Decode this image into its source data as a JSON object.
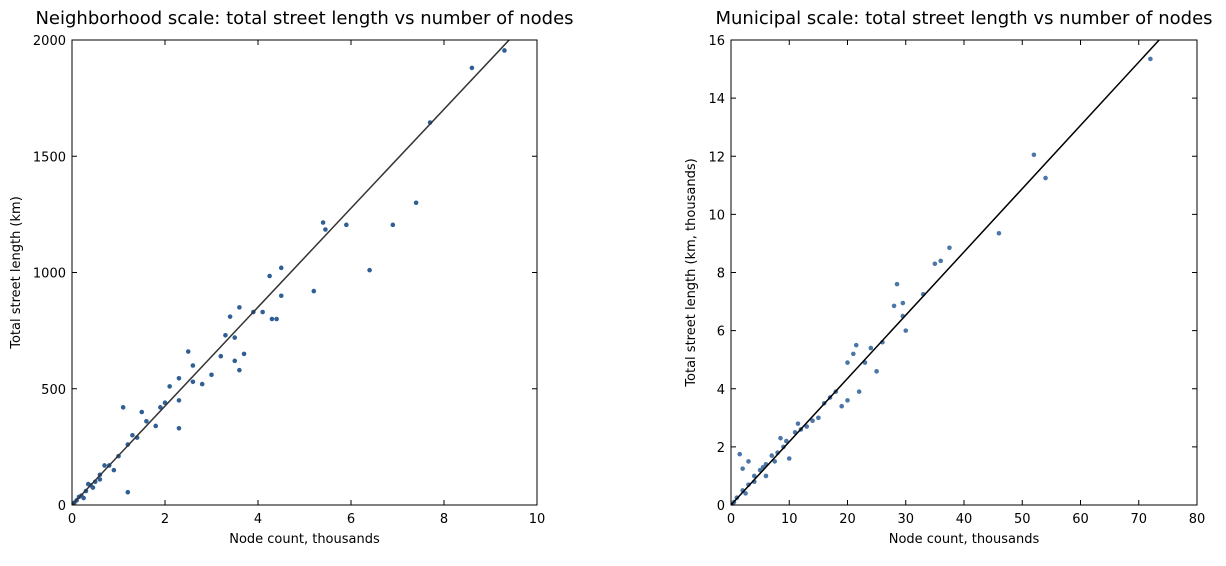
{
  "chart_data": [
    {
      "type": "scatter",
      "title": "Neighborhood scale: total street length vs number of nodes",
      "xlabel": "Node count, thousands",
      "ylabel": "Total street length (km)",
      "xlim": [
        0,
        10
      ],
      "ylim": [
        0,
        2000
      ],
      "xticks": [
        0,
        2,
        4,
        6,
        8,
        10
      ],
      "yticks": [
        0,
        500,
        1000,
        1500,
        2000
      ],
      "color": "#2f5f94",
      "x": [
        9.3,
        8.6,
        7.7,
        7.4,
        6.9,
        6.4,
        5.9,
        5.4,
        5.45,
        5.2,
        4.5,
        4.25,
        4.3,
        4.4,
        4.1,
        4.5,
        3.9,
        3.6,
        3.4,
        3.5,
        3.3,
        3.5,
        3.6,
        3.0,
        2.6,
        2.5,
        2.3,
        2.1,
        2.3,
        1.9,
        2.3,
        1.5,
        1.1,
        1.6,
        1.2,
        1.0,
        0.8,
        0.6,
        0.5,
        0.4,
        0.3,
        0.2,
        0.1,
        0.05,
        1.2,
        0.7,
        0.9,
        1.3,
        1.8,
        2.8,
        3.2,
        0.35,
        0.6,
        0.25,
        1.4,
        2.0,
        2.6,
        3.7,
        0.15,
        0.45
      ],
      "y": [
        1955,
        1880,
        1645,
        1300,
        1205,
        1010,
        1205,
        1215,
        1185,
        920,
        1020,
        985,
        800,
        800,
        830,
        900,
        830,
        850,
        810,
        720,
        730,
        620,
        580,
        560,
        600,
        660,
        545,
        510,
        450,
        420,
        330,
        400,
        420,
        360,
        260,
        210,
        170,
        130,
        100,
        85,
        60,
        40,
        20,
        10,
        55,
        170,
        150,
        300,
        340,
        520,
        640,
        90,
        110,
        30,
        290,
        440,
        530,
        650,
        35,
        75
      ],
      "fit_line": {
        "x": [
          0,
          9.4
        ],
        "y": [
          0,
          2000
        ],
        "color": "#333333"
      }
    },
    {
      "type": "scatter",
      "title": "Municipal scale: total street length vs number of nodes",
      "xlabel": "Node count, thousands",
      "ylabel": "Total street length (km, thousands)",
      "xlim": [
        0,
        80
      ],
      "ylim": [
        0,
        16
      ],
      "xticks": [
        0,
        10,
        20,
        30,
        40,
        50,
        60,
        70,
        80
      ],
      "yticks": [
        0,
        2,
        4,
        6,
        8,
        10,
        12,
        14,
        16
      ],
      "color": "#4a77a8",
      "x": [
        72,
        52,
        54,
        46,
        37.5,
        36,
        35,
        33,
        28.5,
        28,
        29.5,
        30,
        29.5,
        26,
        24,
        25,
        21.5,
        21,
        20,
        19,
        20,
        18,
        17,
        15,
        13,
        12,
        11,
        10,
        9,
        8,
        7,
        6,
        5,
        4,
        3,
        2,
        1,
        0.5,
        1.5,
        2,
        3,
        4,
        6,
        7.5,
        9.5,
        11.5,
        14,
        16,
        22,
        23,
        2.5,
        5.5,
        8.5,
        0.3
      ],
      "y": [
        15.35,
        12.05,
        11.25,
        9.35,
        8.85,
        8.4,
        8.3,
        7.25,
        7.6,
        6.85,
        6.95,
        6.0,
        6.5,
        5.6,
        5.4,
        4.6,
        5.5,
        5.2,
        4.9,
        3.4,
        3.6,
        3.9,
        3.7,
        3.0,
        2.7,
        2.6,
        2.5,
        1.6,
        2.0,
        1.8,
        1.7,
        1.4,
        1.2,
        1.0,
        0.7,
        0.5,
        0.25,
        0.1,
        1.75,
        1.25,
        1.5,
        0.8,
        1.0,
        1.5,
        2.2,
        2.8,
        2.9,
        3.5,
        3.9,
        4.9,
        0.4,
        1.3,
        2.3,
        0.05
      ],
      "fit_line": {
        "x": [
          0,
          73.5
        ],
        "y": [
          0,
          16
        ],
        "color": "#000000"
      }
    }
  ]
}
